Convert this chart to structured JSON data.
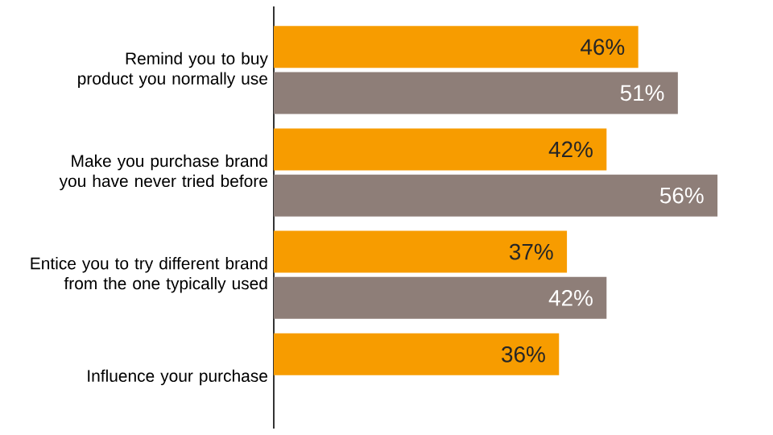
{
  "chart_data": {
    "type": "bar",
    "orientation": "horizontal",
    "categories": [
      "Remind you to buy product you normally use",
      "Make you purchase brand you have never tried before",
      "Entice you to try different brand from the one typically used",
      "Influence your purchase"
    ],
    "series": [
      {
        "color": "#f79c00",
        "values": [
          46,
          42,
          37,
          36
        ],
        "value_labels": [
          "46%",
          "42%",
          "37%",
          "36%"
        ]
      },
      {
        "color": "#8e7e78",
        "values": [
          51,
          56,
          42,
          null
        ],
        "value_labels": [
          "51%",
          "56%",
          "42%",
          null
        ]
      }
    ]
  }
}
